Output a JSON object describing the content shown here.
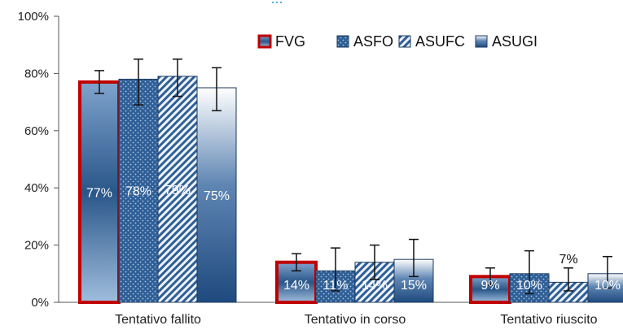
{
  "chart_data": {
    "type": "bar",
    "title": "...",
    "categories": [
      "Tentativo fallito",
      "Tentativo in corso",
      "Tentativo riuscito"
    ],
    "ylim": [
      0,
      100
    ],
    "yticks": [
      "0%",
      "20%",
      "40%",
      "60%",
      "80%",
      "100%"
    ],
    "grid": false,
    "legend_position": "top-right",
    "series": [
      {
        "name": "FVG",
        "values": [
          77,
          14,
          9
        ],
        "labels": [
          "77%",
          "14%",
          "9%"
        ],
        "error": [
          [
            73,
            81
          ],
          [
            11,
            17
          ],
          [
            6,
            12
          ]
        ],
        "color": "#2f5f96",
        "border": "#c00000",
        "pattern": "gradient"
      },
      {
        "name": "ASFO",
        "values": [
          78,
          11,
          10
        ],
        "labels": [
          "78%",
          "11%",
          "10%"
        ],
        "error": [
          [
            69,
            85
          ],
          [
            4,
            19
          ],
          [
            3,
            18
          ]
        ],
        "color": "#2f5f96",
        "pattern": "dots"
      },
      {
        "name": "ASUFC",
        "values": [
          79,
          14,
          7
        ],
        "labels": [
          "79%",
          "14%",
          "7%"
        ],
        "error": [
          [
            72,
            85
          ],
          [
            8,
            20
          ],
          [
            4,
            12
          ]
        ],
        "color": "#2f5f96",
        "pattern": "diagonal"
      },
      {
        "name": "ASUGI",
        "values": [
          75,
          15,
          10
        ],
        "labels": [
          "75%",
          "15%",
          "10%"
        ],
        "error": [
          [
            67,
            82
          ],
          [
            9,
            22
          ],
          [
            5,
            16
          ]
        ],
        "color": "#2f5f96",
        "pattern": "vertical-gradient"
      }
    ]
  }
}
